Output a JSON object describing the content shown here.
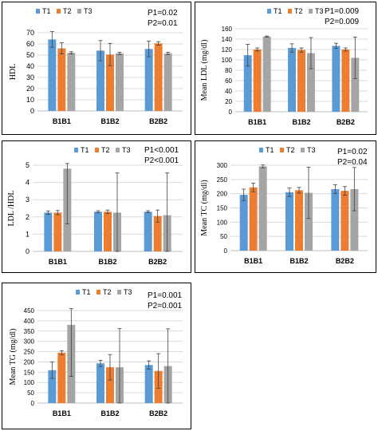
{
  "chart_data": [
    {
      "type": "bar",
      "panel_id": "hdl",
      "ylabel": "HDL",
      "categories": [
        "B1B1",
        "B1B2",
        "B2B2"
      ],
      "series": [
        {
          "name": "T1",
          "values": [
            64,
            54,
            55.5
          ],
          "errors": [
            7,
            9,
            7
          ]
        },
        {
          "name": "T2",
          "values": [
            56,
            50.5,
            60.5
          ],
          "errors": [
            5,
            10,
            1.5
          ]
        },
        {
          "name": "T3",
          "values": [
            52,
            51.5,
            51.5
          ],
          "errors": [
            1,
            1,
            1
          ]
        }
      ],
      "ylim": [
        0,
        70
      ],
      "yticks": [
        0,
        10,
        20,
        30,
        40,
        50,
        60,
        70
      ],
      "annotations": [
        "P1=0.02",
        "P2=0.01"
      ],
      "grid": true,
      "legend": "top"
    },
    {
      "type": "bar",
      "panel_id": "ldl",
      "ylabel": "Mean LDL (mg/dl)",
      "categories": [
        "B1B1",
        "B1B2",
        "B2B2"
      ],
      "series": [
        {
          "name": "T1",
          "values": [
            109,
            123,
            127
          ],
          "errors": [
            21,
            8,
            5
          ]
        },
        {
          "name": "T2",
          "values": [
            120,
            119,
            120
          ],
          "errors": [
            3,
            4,
            3
          ]
        },
        {
          "name": "T3",
          "values": [
            145,
            113,
            104
          ],
          "errors": [
            1,
            30,
            40
          ]
        }
      ],
      "ylim": [
        0,
        160
      ],
      "yticks": [
        0,
        20,
        40,
        60,
        80,
        100,
        120,
        140,
        160
      ],
      "annotations": [
        "P1=0.009",
        "P2=0.009"
      ],
      "grid": true,
      "legend": "top"
    },
    {
      "type": "bar",
      "panel_id": "ratio",
      "ylabel": "LDL /HDL",
      "categories": [
        "B1B1",
        "B1B2",
        "B2B2"
      ],
      "series": [
        {
          "name": "T1",
          "values": [
            2.25,
            2.3,
            2.3
          ],
          "errors": [
            0.1,
            0.06,
            0.06
          ]
        },
        {
          "name": "T2",
          "values": [
            2.25,
            2.3,
            2.05
          ],
          "errors": [
            0.12,
            0.1,
            0.35
          ]
        },
        {
          "name": "T3",
          "values": [
            4.8,
            2.25,
            2.1
          ],
          "errors": [
            3.2,
            2.3,
            2.45
          ]
        }
      ],
      "ylim": [
        0,
        5
      ],
      "yticks": [
        0,
        1,
        2,
        3,
        4,
        5
      ],
      "annotations": [
        "P1<0.001",
        "P2<0.001"
      ],
      "grid": true,
      "legend": "top"
    },
    {
      "type": "bar",
      "panel_id": "tc",
      "ylabel": "Mean TC (mg/dl)",
      "categories": [
        "B1B1",
        "B1B2",
        "B2B2"
      ],
      "series": [
        {
          "name": "T1",
          "values": [
            196,
            205,
            216
          ],
          "errors": [
            20,
            15,
            15
          ]
        },
        {
          "name": "T2",
          "values": [
            222,
            212,
            210
          ],
          "errors": [
            15,
            10,
            15
          ]
        },
        {
          "name": "T3",
          "values": [
            296,
            203,
            216
          ],
          "errors": [
            5,
            90,
            76
          ]
        }
      ],
      "ylim": [
        0,
        300
      ],
      "yticks": [
        0,
        50,
        100,
        150,
        200,
        250,
        300
      ],
      "annotations": [
        "P1=0.02",
        "P2=0.04"
      ],
      "grid": true,
      "legend": "top"
    },
    {
      "type": "bar",
      "panel_id": "tg",
      "ylabel": "Mean TG (mg/dl)",
      "categories": [
        "B1B1",
        "B1B2",
        "B2B2"
      ],
      "series": [
        {
          "name": "T1",
          "values": [
            160,
            193,
            185
          ],
          "errors": [
            40,
            15,
            20
          ]
        },
        {
          "name": "T2",
          "values": [
            245,
            174,
            156
          ],
          "errors": [
            10,
            62,
            84
          ]
        },
        {
          "name": "T3",
          "values": [
            380,
            174,
            180
          ],
          "errors": [
            250,
            188,
            181
          ]
        }
      ],
      "ylim": [
        0,
        450
      ],
      "yticks": [
        0,
        50,
        100,
        150,
        200,
        250,
        300,
        350,
        400,
        450
      ],
      "annotations": [
        "P1=0.001",
        "P2=0.001"
      ],
      "grid": true,
      "legend": "top"
    }
  ],
  "colors": {
    "T1": "#5b9bd5",
    "T2": "#ed7d31",
    "T3": "#a5a5a5",
    "grid": "#d9d9d9",
    "axis": "#bfbfbf",
    "errorbar": "#404040"
  }
}
